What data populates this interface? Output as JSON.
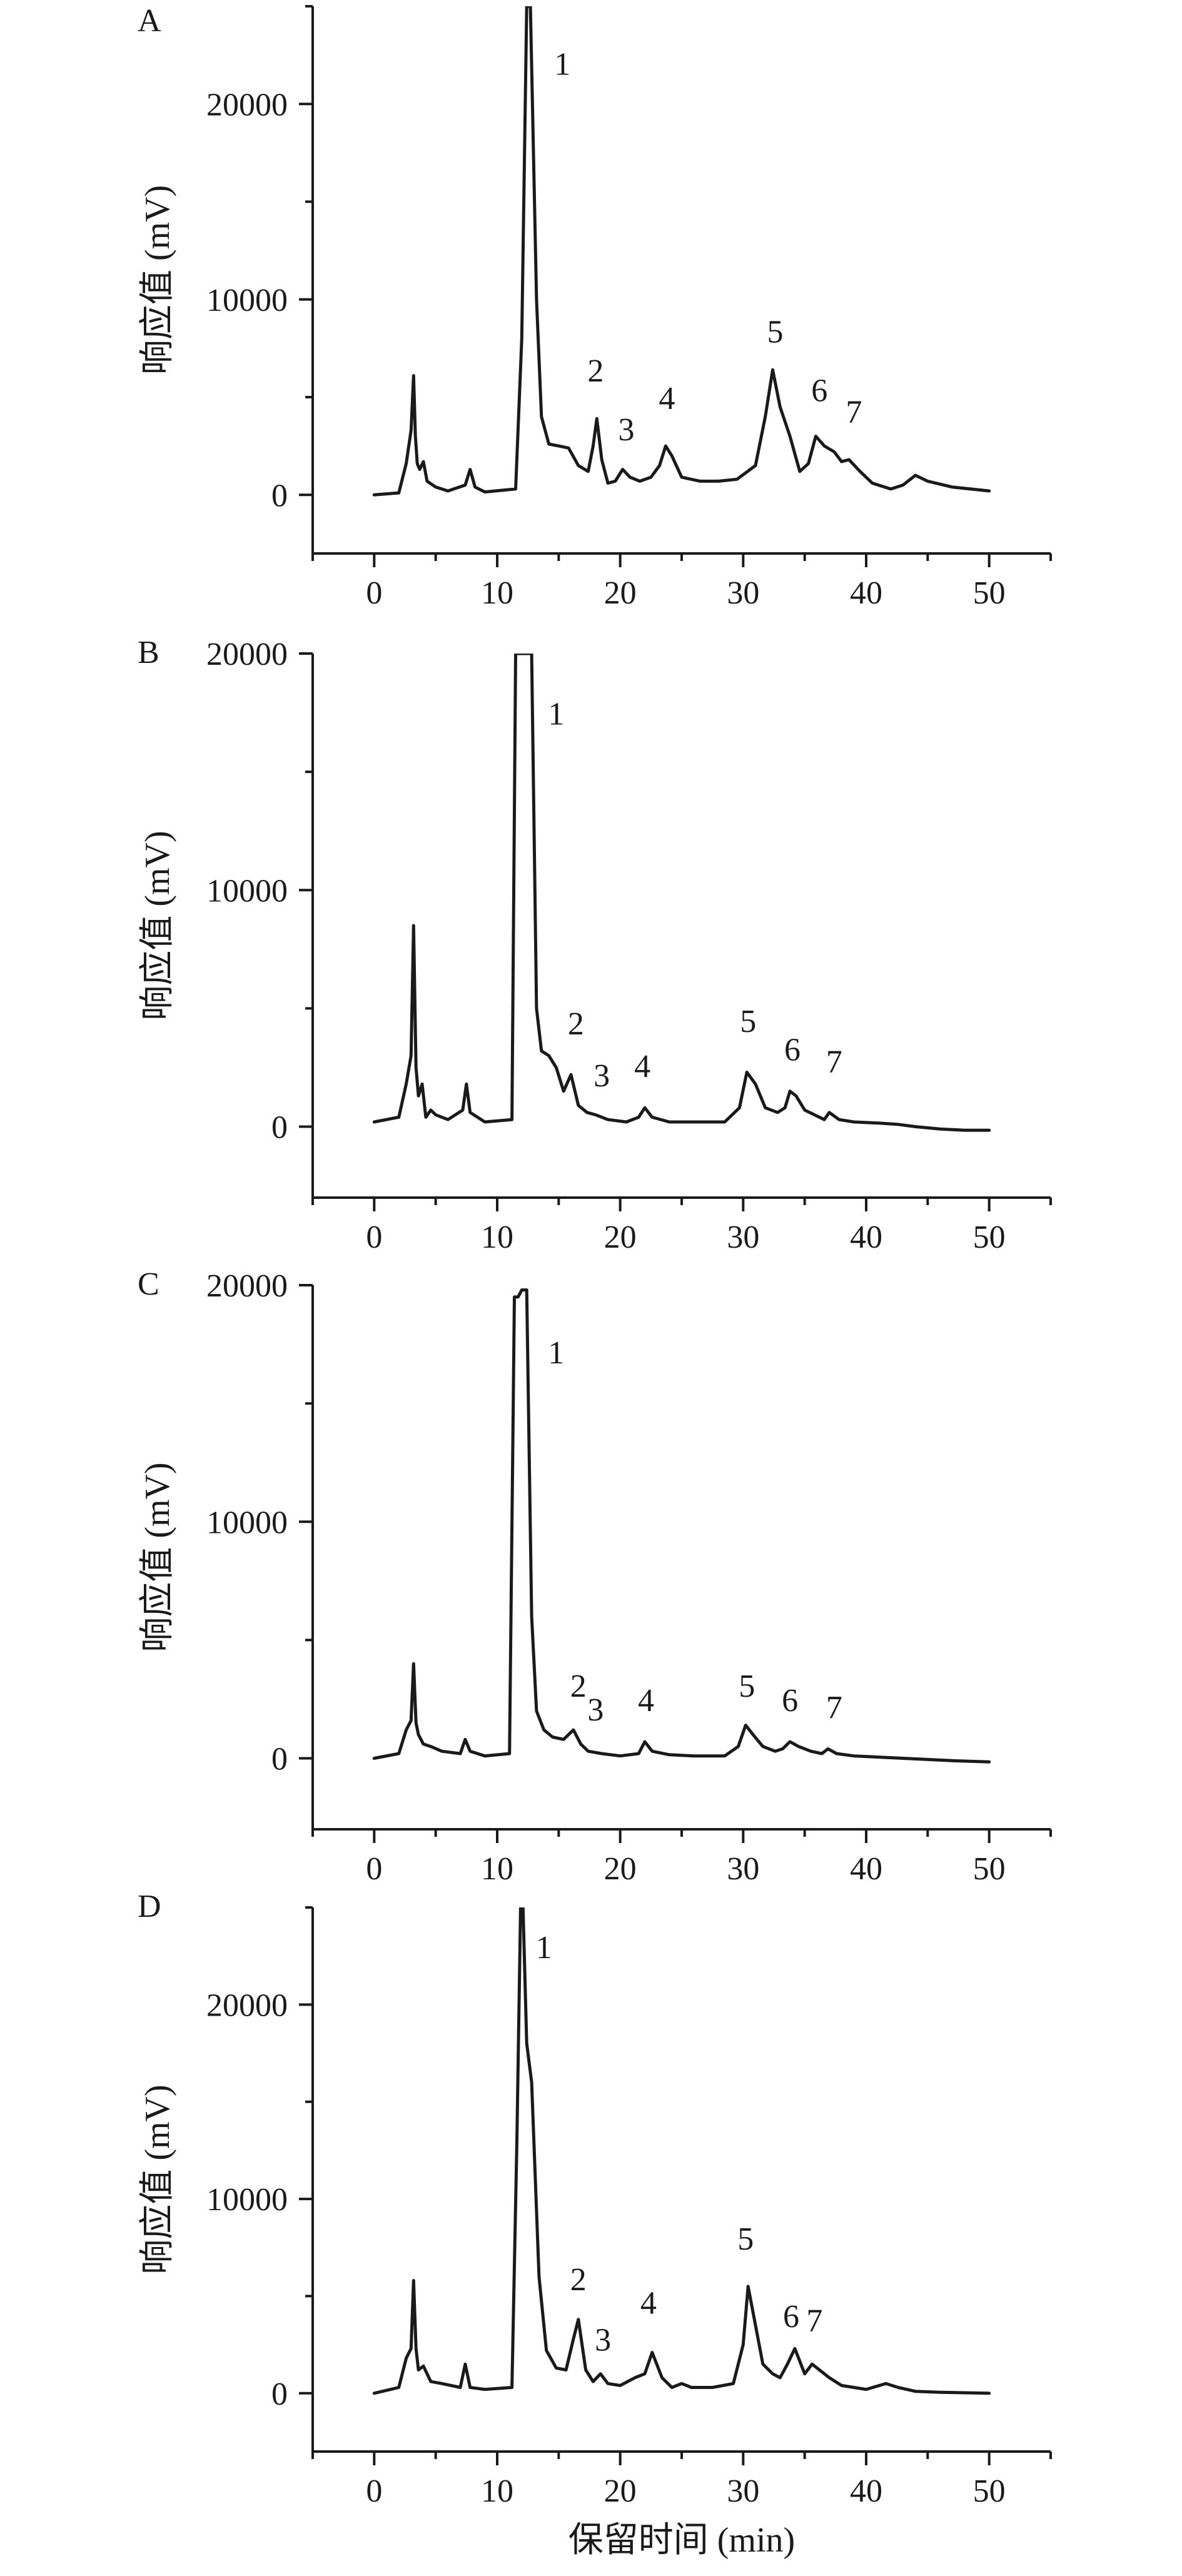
{
  "chart_data": [
    {
      "type": "line",
      "panel_label": "A",
      "xlabel": "",
      "ylabel": "响应值 (mV)",
      "xlim": [
        -5,
        55
      ],
      "ylim": [
        -3000,
        25000
      ],
      "xticks": [
        0,
        10,
        20,
        30,
        40,
        50
      ],
      "yticks": [
        0,
        10000,
        20000
      ],
      "grid": false,
      "series": [
        {
          "x": [
            0,
            2.0,
            2.6,
            3.0,
            3.2,
            3.35,
            3.5,
            3.7,
            4.0,
            4.3,
            5.0,
            6.0,
            7.4,
            7.8,
            8.2,
            9,
            11.5,
            12.0,
            12.4,
            12.7,
            13.2,
            13.6,
            14.2,
            15.0,
            15.8,
            16.6,
            17.4,
            17.8,
            18.1,
            18.5,
            19.0,
            19.6,
            20.2,
            20.8,
            21.6,
            22.5,
            23.2,
            23.7,
            24.2,
            25.0,
            26.5,
            28.0,
            29.5,
            31.0,
            31.8,
            32.4,
            33.0,
            33.8,
            34.6,
            35.3,
            35.9,
            36.6,
            37.4,
            38.0,
            38.6,
            39.5,
            40.5,
            42.0,
            43.0,
            44.0,
            45.0,
            47.0,
            50.0
          ],
          "values": [
            0,
            100,
            1600,
            3300,
            6100,
            3000,
            1600,
            1300,
            1700,
            700,
            400,
            200,
            500,
            1300,
            400,
            150,
            300,
            8000,
            25000,
            25000,
            10000,
            4000,
            2600,
            2500,
            2400,
            1500,
            1200,
            2500,
            3900,
            1800,
            600,
            700,
            1300,
            900,
            700,
            900,
            1500,
            2500,
            2000,
            900,
            700,
            700,
            800,
            1500,
            4000,
            6400,
            4500,
            3000,
            1200,
            1600,
            3000,
            2500,
            2200,
            1700,
            1800,
            1200,
            600,
            300,
            500,
            1000,
            700,
            400,
            200
          ]
        }
      ],
      "annotations": [
        {
          "label": "1",
          "x": 15.3,
          "y": 21500
        },
        {
          "label": "2",
          "x": 18.0,
          "y": 5800
        },
        {
          "label": "3",
          "x": 20.5,
          "y": 2800
        },
        {
          "label": "4",
          "x": 23.8,
          "y": 4400
        },
        {
          "label": "5",
          "x": 32.6,
          "y": 7800
        },
        {
          "label": "6",
          "x": 36.2,
          "y": 4800
        },
        {
          "label": "7",
          "x": 39.0,
          "y": 3700
        }
      ]
    },
    {
      "type": "line",
      "panel_label": "B",
      "xlabel": "",
      "ylabel": "响应值 (mV)",
      "xlim": [
        -5,
        55
      ],
      "ylim": [
        -3000,
        20000
      ],
      "xticks": [
        0,
        10,
        20,
        30,
        40,
        50
      ],
      "yticks": [
        0,
        10000,
        20000
      ],
      "grid": false,
      "series": [
        {
          "x": [
            0,
            2.0,
            2.6,
            3.0,
            3.2,
            3.4,
            3.6,
            3.9,
            4.2,
            4.6,
            5.0,
            6.0,
            7.2,
            7.5,
            7.8,
            9,
            11.2,
            11.5,
            11.8,
            12.4,
            12.8,
            13.2,
            13.6,
            14.2,
            14.8,
            15.4,
            16.0,
            16.6,
            17.3,
            18.0,
            19.0,
            20.5,
            21.5,
            22.0,
            22.6,
            24.0,
            26.0,
            28.5,
            29.7,
            30.3,
            31.0,
            31.8,
            32.8,
            33.4,
            33.8,
            34.3,
            35.0,
            35.8,
            36.6,
            37.0,
            37.8,
            39.0,
            41.0,
            42.5,
            44.0,
            46.0,
            48.0,
            50.0
          ],
          "values": [
            200,
            400,
            1800,
            3000,
            8500,
            2500,
            1300,
            1800,
            400,
            700,
            500,
            300,
            700,
            1800,
            600,
            200,
            300,
            20000,
            20000,
            20000,
            20000,
            5000,
            3200,
            3000,
            2500,
            1500,
            2200,
            900,
            600,
            500,
            300,
            200,
            400,
            800,
            400,
            200,
            200,
            200,
            800,
            2300,
            1800,
            800,
            600,
            800,
            1500,
            1300,
            700,
            500,
            300,
            600,
            300,
            200,
            150,
            100,
            0,
            -100,
            -150,
            -150
          ]
        }
      ],
      "annotations": [
        {
          "label": "1",
          "x": 14.8,
          "y": 17000
        },
        {
          "label": "2",
          "x": 16.4,
          "y": 3900
        },
        {
          "label": "3",
          "x": 18.5,
          "y": 1700
        },
        {
          "label": "4",
          "x": 21.8,
          "y": 2100
        },
        {
          "label": "5",
          "x": 30.4,
          "y": 4000
        },
        {
          "label": "6",
          "x": 34.0,
          "y": 2800
        },
        {
          "label": "7",
          "x": 37.4,
          "y": 2300
        }
      ]
    },
    {
      "type": "line",
      "panel_label": "C",
      "xlabel": "",
      "ylabel": "响应值 (mV)",
      "xlim": [
        -5,
        55
      ],
      "ylim": [
        -3000,
        20000
      ],
      "xticks": [
        0,
        10,
        20,
        30,
        40,
        50
      ],
      "yticks": [
        0,
        10000,
        20000
      ],
      "grid": false,
      "series": [
        {
          "x": [
            0,
            2.0,
            2.6,
            3.0,
            3.2,
            3.4,
            3.6,
            4.0,
            4.6,
            5.5,
            7.0,
            7.4,
            7.8,
            9,
            11.0,
            11.4,
            11.7,
            12.0,
            12.4,
            12.8,
            13.2,
            13.8,
            14.5,
            15.4,
            16.2,
            16.8,
            17.4,
            18.5,
            20.0,
            21.5,
            22.0,
            22.6,
            24.0,
            26.0,
            28.5,
            29.6,
            30.2,
            30.8,
            31.6,
            32.6,
            33.2,
            33.8,
            34.5,
            35.5,
            36.4,
            36.9,
            37.6,
            39.0,
            41.0,
            43.0,
            45.0,
            47.0,
            50.0
          ],
          "values": [
            0,
            200,
            1200,
            1600,
            4000,
            1500,
            1000,
            600,
            500,
            300,
            200,
            800,
            300,
            100,
            200,
            19500,
            19500,
            19800,
            19800,
            6000,
            2000,
            1200,
            900,
            800,
            1200,
            600,
            300,
            200,
            100,
            200,
            700,
            300,
            150,
            100,
            100,
            500,
            1400,
            1000,
            500,
            300,
            400,
            700,
            500,
            300,
            200,
            400,
            200,
            100,
            50,
            0,
            -50,
            -100,
            -150
          ]
        }
      ],
      "annotations": [
        {
          "label": "1",
          "x": 14.8,
          "y": 16700
        },
        {
          "label": "2",
          "x": 16.6,
          "y": 2600
        },
        {
          "label": "3",
          "x": 18.0,
          "y": 1600
        },
        {
          "label": "4",
          "x": 22.1,
          "y": 2000
        },
        {
          "label": "5",
          "x": 30.3,
          "y": 2600
        },
        {
          "label": "6",
          "x": 33.8,
          "y": 2000
        },
        {
          "label": "7",
          "x": 37.4,
          "y": 1700
        }
      ]
    },
    {
      "type": "line",
      "panel_label": "D",
      "xlabel": "保留时间 (min)",
      "ylabel": "响应值 (mV)",
      "xlim": [
        -5,
        55
      ],
      "ylim": [
        -3000,
        25000
      ],
      "xticks": [
        0,
        10,
        20,
        30,
        40,
        50
      ],
      "yticks": [
        0,
        10000,
        20000
      ],
      "grid": false,
      "series": [
        {
          "x": [
            0,
            2.0,
            2.6,
            3.0,
            3.2,
            3.4,
            3.6,
            4.0,
            4.6,
            5.5,
            7.0,
            7.4,
            7.8,
            9,
            11.2,
            11.6,
            11.9,
            12.1,
            12.4,
            12.8,
            13.4,
            14.0,
            14.8,
            15.6,
            16.2,
            16.6,
            17.2,
            17.8,
            18.4,
            19.0,
            20.0,
            21.2,
            22.0,
            22.6,
            23.4,
            24.2,
            25.0,
            25.8,
            27.5,
            29.2,
            30.0,
            30.4,
            31.0,
            31.6,
            32.4,
            33.0,
            33.6,
            34.2,
            35.0,
            35.6,
            36.2,
            37.0,
            38.0,
            40.0,
            41.6,
            42.6,
            44.0,
            46.0,
            50.0
          ],
          "values": [
            0,
            300,
            1800,
            2300,
            5800,
            2300,
            1200,
            1400,
            600,
            500,
            300,
            1500,
            300,
            200,
            300,
            13000,
            25000,
            25000,
            18000,
            16000,
            6000,
            2200,
            1300,
            1200,
            2800,
            3800,
            1200,
            600,
            1000,
            500,
            400,
            800,
            1000,
            2100,
            800,
            300,
            500,
            300,
            300,
            500,
            2500,
            5500,
            3500,
            1500,
            1000,
            800,
            1500,
            2300,
            1000,
            1500,
            1200,
            800,
            400,
            200,
            500,
            300,
            100,
            50,
            0
          ]
        }
      ],
      "annotations": [
        {
          "label": "1",
          "x": 13.8,
          "y": 22400
        },
        {
          "label": "2",
          "x": 16.6,
          "y": 5300
        },
        {
          "label": "3",
          "x": 18.6,
          "y": 2200
        },
        {
          "label": "4",
          "x": 22.3,
          "y": 4100
        },
        {
          "label": "5",
          "x": 30.2,
          "y": 7400
        },
        {
          "label": "6",
          "x": 33.9,
          "y": 3400
        },
        {
          "label": "7",
          "x": 35.8,
          "y": 3200
        }
      ]
    }
  ]
}
